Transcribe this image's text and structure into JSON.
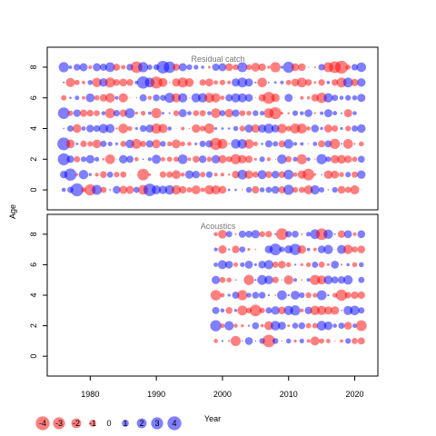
{
  "chart_data": {
    "type": "scatter",
    "subtype": "bubble-residuals",
    "xlabel": "Year",
    "ylabel": "Age",
    "x_ticks": [
      1980,
      1990,
      2000,
      2010,
      2020
    ],
    "y_ticks": [
      0,
      2,
      4,
      6,
      8
    ],
    "xlim": [
      1973.5,
      2023.5
    ],
    "ylim": [
      -1.3,
      9.3
    ],
    "colors": {
      "positive": "#0000ff",
      "negative": "#ff0000"
    },
    "bubble_opacity": 0.5,
    "panels": [
      {
        "title": "Residual catch",
        "years": [
          1976,
          2021
        ],
        "ages": [
          0,
          8
        ],
        "seed": 7,
        "big_points": [
          {
            "year": 1991,
            "age": 8,
            "value": 3.3
          },
          {
            "year": 1992,
            "age": 8,
            "value": 2.8
          },
          {
            "year": 2018,
            "age": 8,
            "value": -3.5
          },
          {
            "year": 2017,
            "age": 8,
            "value": -2.9
          },
          {
            "year": 2010,
            "age": 8,
            "value": 2.6
          },
          {
            "year": 1987,
            "age": 8,
            "value": -2.8
          },
          {
            "year": 1988,
            "age": 7,
            "value": 3.2
          },
          {
            "year": 1990,
            "age": 7,
            "value": -3.0
          },
          {
            "year": 2007,
            "age": 6,
            "value": -3.0
          },
          {
            "year": 1976,
            "age": 5,
            "value": 2.8
          },
          {
            "year": 2008,
            "age": 5,
            "value": -3.0
          },
          {
            "year": 1976,
            "age": 3,
            "value": 3.4
          },
          {
            "year": 1976,
            "age": 2,
            "value": 3.0
          },
          {
            "year": 1977,
            "age": 1,
            "value": 3.1
          },
          {
            "year": 1978,
            "age": 0,
            "value": 3.5
          },
          {
            "year": 1980,
            "age": 0,
            "value": -2.6
          },
          {
            "year": 1988,
            "age": 1,
            "value": -2.8
          },
          {
            "year": 1999,
            "age": 3,
            "value": -3.0
          },
          {
            "year": 2013,
            "age": 1,
            "value": -2.8
          },
          {
            "year": 1989,
            "age": 0,
            "value": 3.2
          }
        ]
      },
      {
        "title": "Acoustics",
        "years": [
          1999,
          2021
        ],
        "ages": [
          1,
          8
        ],
        "seed": 23,
        "big_points": [
          {
            "year": 2007,
            "age": 1,
            "value": -3.3
          },
          {
            "year": 2009,
            "age": 8,
            "value": -2.9
          },
          {
            "year": 2008,
            "age": 7,
            "value": 2.9
          },
          {
            "year": 2015,
            "age": 8,
            "value": -2.8
          },
          {
            "year": 1999,
            "age": 2,
            "value": 2.6
          },
          {
            "year": 2021,
            "age": 2,
            "value": -2.4
          },
          {
            "year": 2005,
            "age": 3,
            "value": -2.8
          },
          {
            "year": 2011,
            "age": 7,
            "value": 2.7
          },
          {
            "year": 2018,
            "age": 4,
            "value": -2.7
          },
          {
            "year": 1999,
            "age": 4,
            "value": -2.3
          }
        ]
      }
    ],
    "legend": {
      "values": [
        -4,
        -3,
        -2,
        -1,
        0,
        1,
        2,
        3,
        4
      ],
      "labels": [
        "-4",
        "-3",
        "-2",
        "-1",
        "0",
        "1",
        "2",
        "3",
        "4"
      ]
    }
  }
}
